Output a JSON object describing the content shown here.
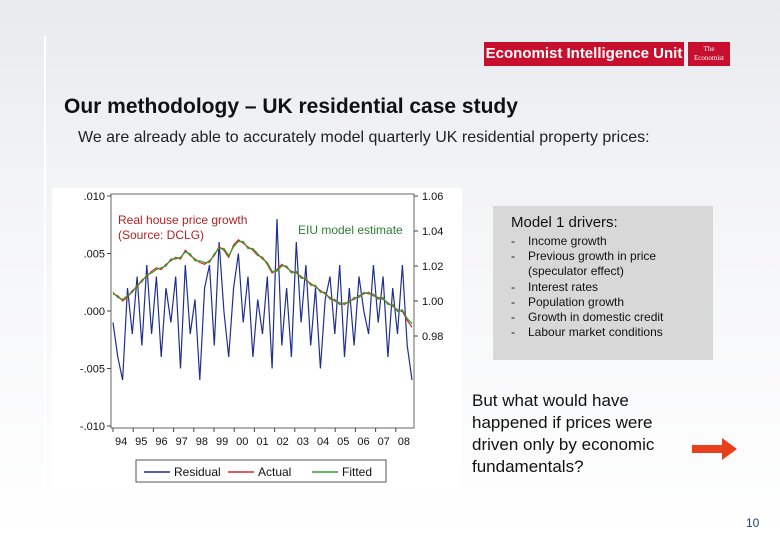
{
  "header": {
    "logo_text": "Economist Intelligence Unit",
    "logo_small": "The Economist"
  },
  "slide": {
    "title": "Our methodology – UK residential case study",
    "subtitle": "We are already able to accurately model quarterly UK residential property prices:",
    "question": "But what would have happened if prices were driven only by economic fundamentals?",
    "page_number": "10",
    "colors": {
      "brand": "#c8102e",
      "arrow": "#e8401c",
      "drivers_bg": "#d8d8d8"
    },
    "icons": {
      "arrow": "right-arrow-icon"
    }
  },
  "drivers": {
    "title": "Model 1 drivers:",
    "items": [
      "Income growth",
      "Previous growth in price (speculator effect)",
      "Interest rates",
      "Population growth",
      "Growth in domestic credit",
      "Labour market conditions"
    ]
  },
  "chart_data": {
    "type": "line",
    "annotations": [
      "Real house price growth (Source: DCLG)",
      "EIU model estimate"
    ],
    "x_tick_labels": [
      "94",
      "95",
      "96",
      "97",
      "98",
      "99",
      "00",
      "01",
      "02",
      "03",
      "04",
      "05",
      "06",
      "07",
      "08"
    ],
    "left_axis": {
      "ticks": [
        ".010",
        ".005",
        ".000",
        "-.005",
        "-.010"
      ],
      "range": [
        -0.01,
        0.01
      ]
    },
    "right_axis": {
      "ticks": [
        "1.06",
        "1.04",
        "1.02",
        "1.00",
        "0.98"
      ],
      "range": [
        0.98,
        1.06
      ]
    },
    "legend": {
      "placement": "bottom",
      "entries": [
        "Residual",
        "Actual",
        "Fitted"
      ]
    },
    "series": [
      {
        "name": "Actual",
        "axis": "right",
        "color": "#d62728",
        "values": [
          1.004,
          1.003,
          1.0,
          1.002,
          1.006,
          1.008,
          1.012,
          1.014,
          1.017,
          1.019,
          1.018,
          1.021,
          1.023,
          1.025,
          1.024,
          1.029,
          1.026,
          1.024,
          1.022,
          1.021,
          1.023,
          1.026,
          1.031,
          1.029,
          1.025,
          1.032,
          1.035,
          1.033,
          1.031,
          1.029,
          1.026,
          1.025,
          1.021,
          1.016,
          1.018,
          1.021,
          1.019,
          1.017,
          1.016,
          1.014,
          1.012,
          1.01,
          1.008,
          1.006,
          1.004,
          1.002,
          1.0,
          0.999,
          0.998,
          1.0,
          1.001,
          1.003,
          1.004,
          1.005,
          1.003,
          1.002,
          1.001,
          0.999,
          0.997,
          0.995,
          0.994,
          0.989,
          0.985
        ]
      },
      {
        "name": "Fitted",
        "axis": "right",
        "color": "#2ca02c",
        "values": [
          1.005,
          1.002,
          1.001,
          1.003,
          1.005,
          1.009,
          1.011,
          1.015,
          1.016,
          1.018,
          1.019,
          1.02,
          1.024,
          1.024,
          1.025,
          1.028,
          1.027,
          1.023,
          1.023,
          1.022,
          1.022,
          1.027,
          1.03,
          1.03,
          1.026,
          1.031,
          1.034,
          1.034,
          1.03,
          1.03,
          1.027,
          1.024,
          1.022,
          1.017,
          1.017,
          1.02,
          1.02,
          1.016,
          1.017,
          1.013,
          1.013,
          1.009,
          1.009,
          1.005,
          1.005,
          1.001,
          1.001,
          0.998,
          0.999,
          0.999,
          1.002,
          1.002,
          1.005,
          1.004,
          1.004,
          1.001,
          1.002,
          0.998,
          0.998,
          0.994,
          0.995,
          0.99,
          0.987
        ]
      },
      {
        "name": "Residual",
        "axis": "left",
        "color": "#1f2f8f",
        "values": [
          -0.001,
          -0.004,
          -0.006,
          0.002,
          -0.002,
          0.003,
          -0.003,
          0.004,
          -0.002,
          0.003,
          -0.004,
          0.002,
          -0.001,
          0.003,
          -0.005,
          0.004,
          -0.002,
          0.001,
          -0.006,
          0.002,
          0.004,
          -0.003,
          0.006,
          0.0,
          -0.004,
          0.002,
          0.005,
          -0.001,
          0.003,
          -0.004,
          0.001,
          -0.002,
          0.003,
          -0.005,
          0.008,
          -0.003,
          0.002,
          -0.004,
          0.006,
          -0.001,
          0.004,
          -0.003,
          0.002,
          -0.005,
          0.001,
          0.003,
          -0.002,
          0.004,
          -0.004,
          0.002,
          -0.003,
          0.003,
          0.0,
          -0.002,
          0.004,
          -0.001,
          0.003,
          -0.004,
          0.002,
          -0.002,
          0.004,
          -0.003,
          -0.006
        ]
      }
    ]
  }
}
